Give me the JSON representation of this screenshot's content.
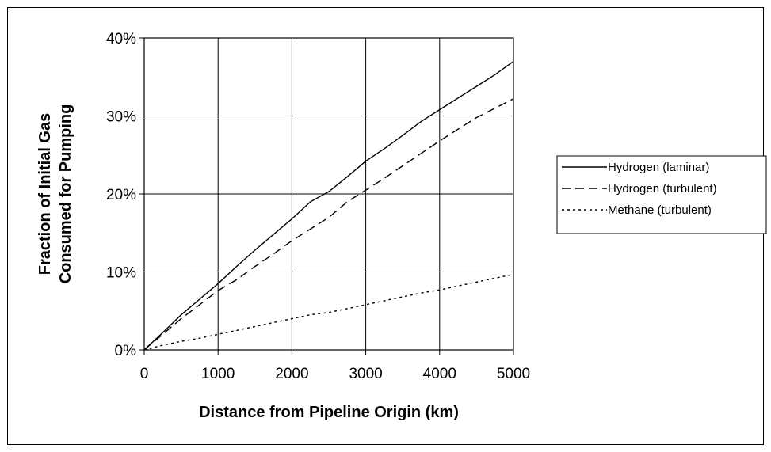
{
  "chart_data": {
    "type": "line",
    "title": "",
    "xlabel": "Distance from Pipeline Origin (km)",
    "ylabel_line1": "Fraction of Initial Gas",
    "ylabel_line2": "Consumed for Pumping",
    "xlim": [
      0,
      5000
    ],
    "ylim": [
      0,
      0.4
    ],
    "x_ticks": [
      0,
      1000,
      2000,
      3000,
      4000,
      5000
    ],
    "x_tick_labels": [
      "0",
      "1000",
      "2000",
      "3000",
      "4000",
      "5000"
    ],
    "y_ticks": [
      0,
      0.1,
      0.2,
      0.3,
      0.4
    ],
    "y_tick_labels": [
      "0%",
      "10%",
      "20%",
      "30%",
      "40%"
    ],
    "grid": true,
    "legend_position": "right",
    "series": [
      {
        "name": "Hydrogen (laminar)",
        "line_style": "solid",
        "x": [
          0,
          250,
          500,
          750,
          1000,
          1250,
          1500,
          1750,
          2000,
          2250,
          2500,
          2750,
          3000,
          3250,
          3500,
          3750,
          4000,
          4250,
          4500,
          4750,
          5000
        ],
        "y": [
          0,
          0.022,
          0.045,
          0.065,
          0.085,
          0.107,
          0.128,
          0.148,
          0.168,
          0.19,
          0.203,
          0.222,
          0.242,
          0.258,
          0.275,
          0.293,
          0.308,
          0.323,
          0.338,
          0.353,
          0.37
        ]
      },
      {
        "name": "Hydrogen (turbulent)",
        "line_style": "dashed",
        "x": [
          0,
          250,
          500,
          750,
          1000,
          1250,
          1500,
          1750,
          2000,
          2250,
          2500,
          2750,
          3000,
          3250,
          3500,
          3750,
          4000,
          4250,
          4500,
          4750,
          5000
        ],
        "y": [
          0,
          0.02,
          0.04,
          0.058,
          0.076,
          0.09,
          0.107,
          0.123,
          0.14,
          0.155,
          0.17,
          0.19,
          0.205,
          0.22,
          0.236,
          0.252,
          0.268,
          0.283,
          0.298,
          0.31,
          0.322
        ]
      },
      {
        "name": "Methane (turbulent)",
        "line_style": "dotted",
        "x": [
          0,
          250,
          500,
          750,
          1000,
          1250,
          1500,
          1750,
          2000,
          2250,
          2500,
          2750,
          3000,
          3250,
          3500,
          3750,
          4000,
          4250,
          4500,
          4750,
          5000
        ],
        "y": [
          0,
          0.006,
          0.011,
          0.015,
          0.02,
          0.025,
          0.03,
          0.035,
          0.04,
          0.045,
          0.048,
          0.053,
          0.058,
          0.063,
          0.068,
          0.073,
          0.077,
          0.082,
          0.087,
          0.092,
          0.097
        ]
      }
    ]
  }
}
